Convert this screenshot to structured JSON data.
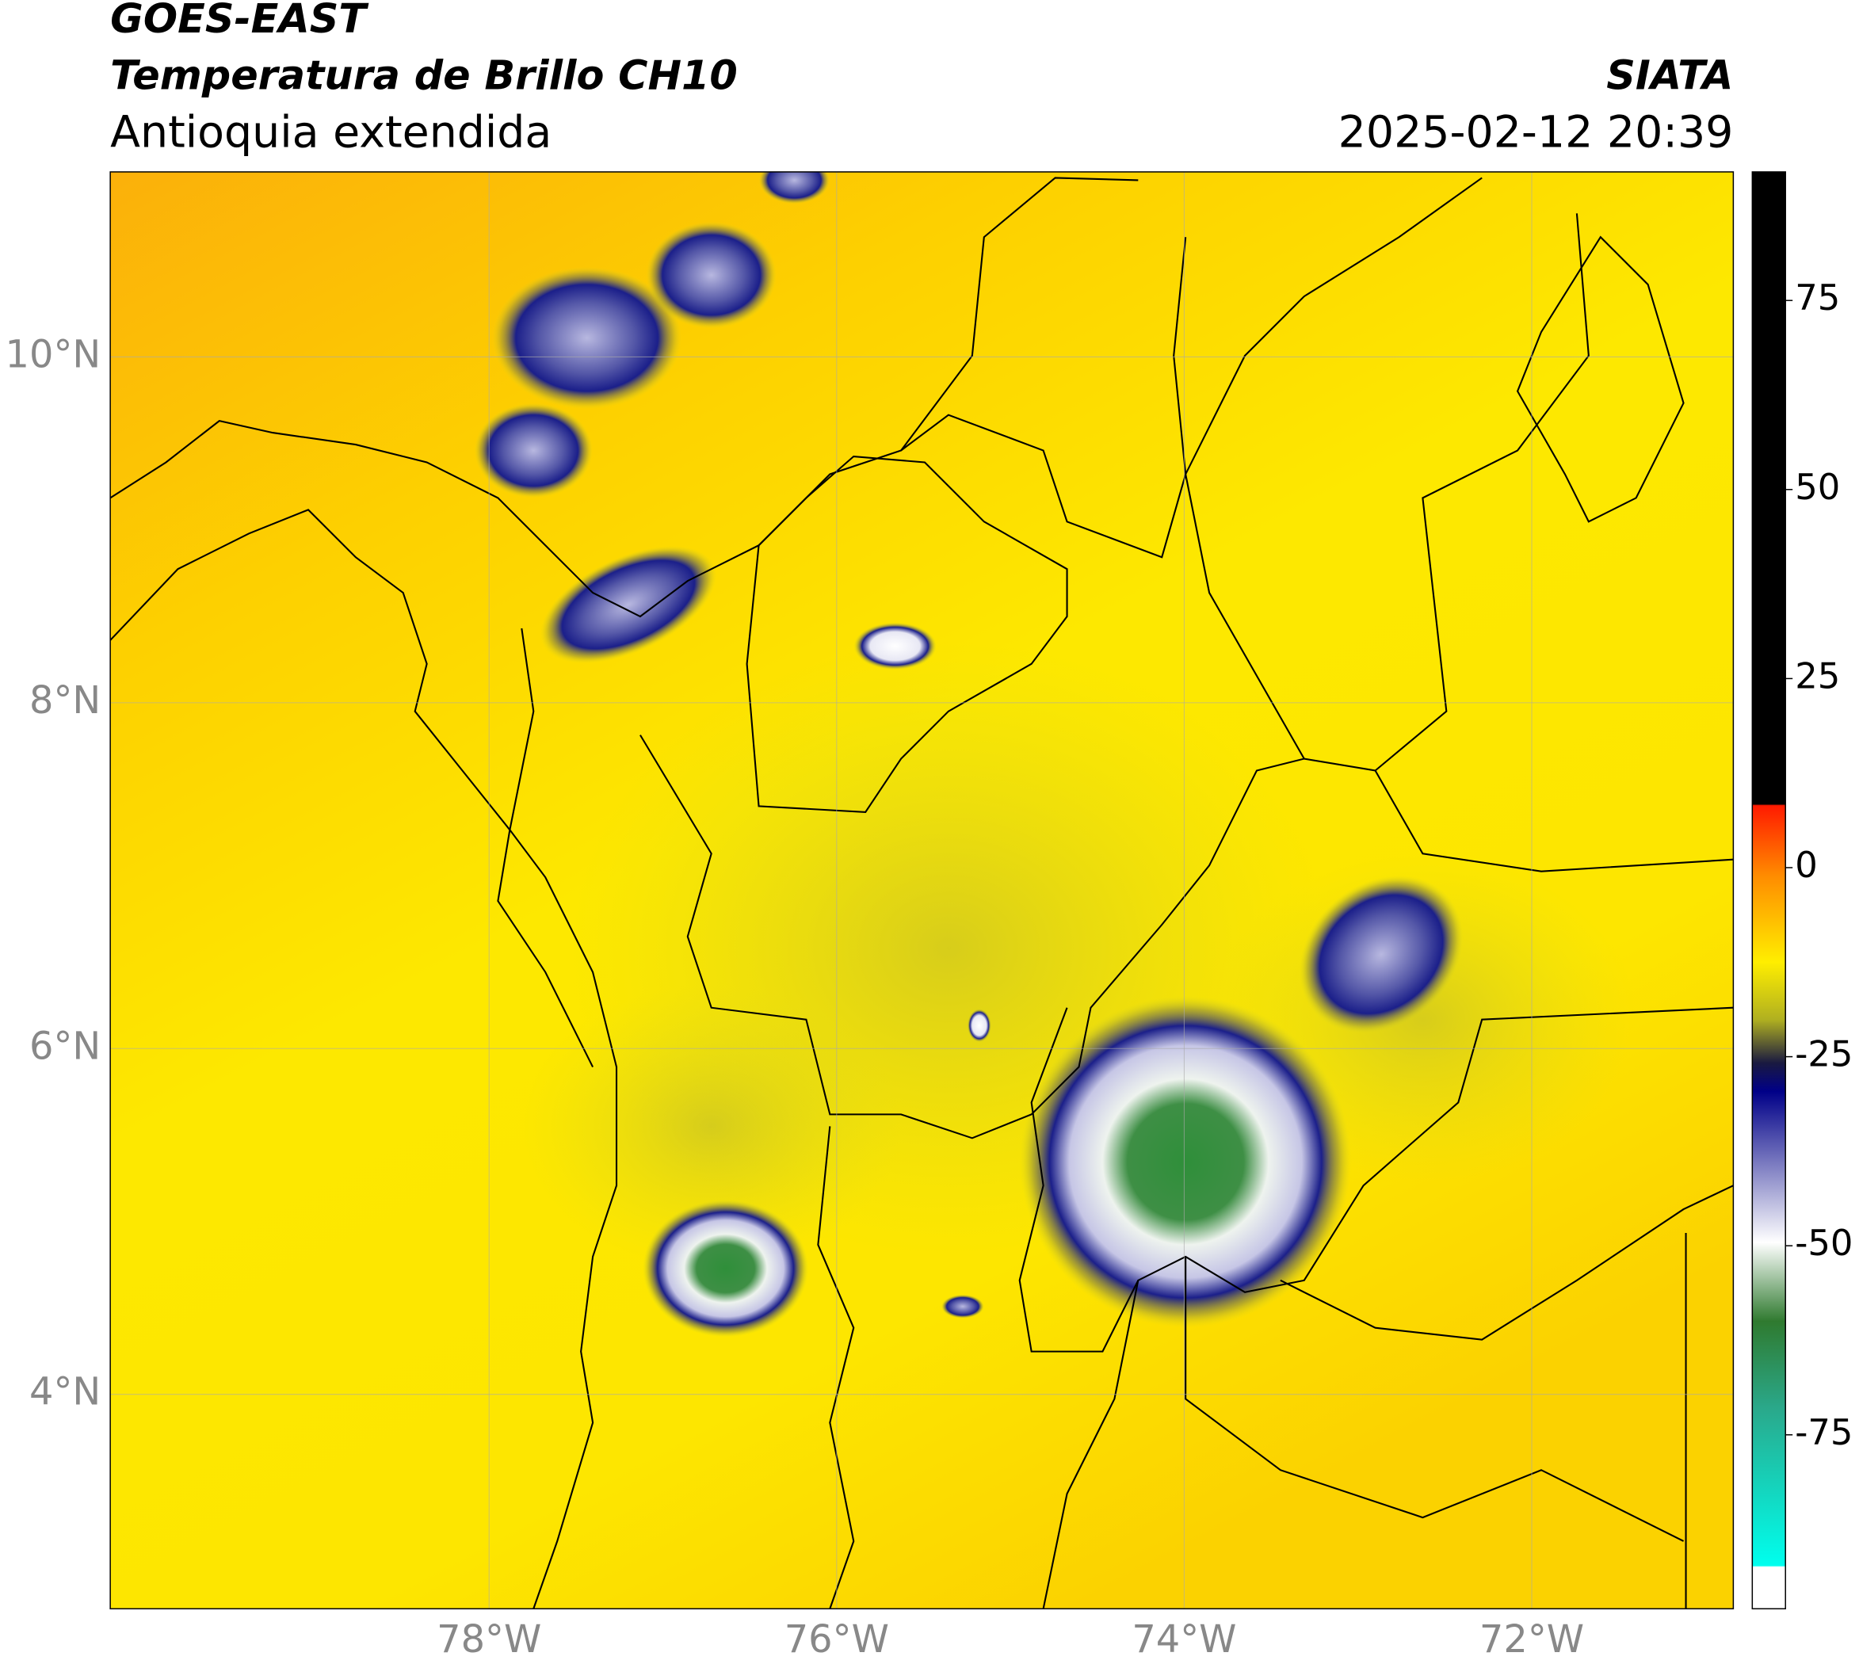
{
  "header": {
    "title": "GOES-EAST",
    "subtitle": "Temperatura de Brillo CH10",
    "region": "Antioquia extendida",
    "source": "SIATA",
    "datetime": "2025-02-12 20:39"
  },
  "map": {
    "lon_extent": [
      -80.18,
      -70.84
    ],
    "lat_extent": [
      2.76,
      11.07
    ],
    "lat_ticks": [
      {
        "value": 10,
        "label": "10°N"
      },
      {
        "value": 8,
        "label": "8°N"
      },
      {
        "value": 6,
        "label": "6°N"
      },
      {
        "value": 4,
        "label": "4°N"
      }
    ],
    "lon_ticks": [
      {
        "value": -78,
        "label": "78°W"
      },
      {
        "value": -76,
        "label": "76°W"
      },
      {
        "value": -74,
        "label": "74°W"
      },
      {
        "value": -72,
        "label": "72°W"
      }
    ]
  },
  "colorbar": {
    "lim": [
      -98,
      92
    ],
    "ticks": [
      75,
      50,
      25,
      0,
      -25,
      -50,
      -75
    ]
  }
}
